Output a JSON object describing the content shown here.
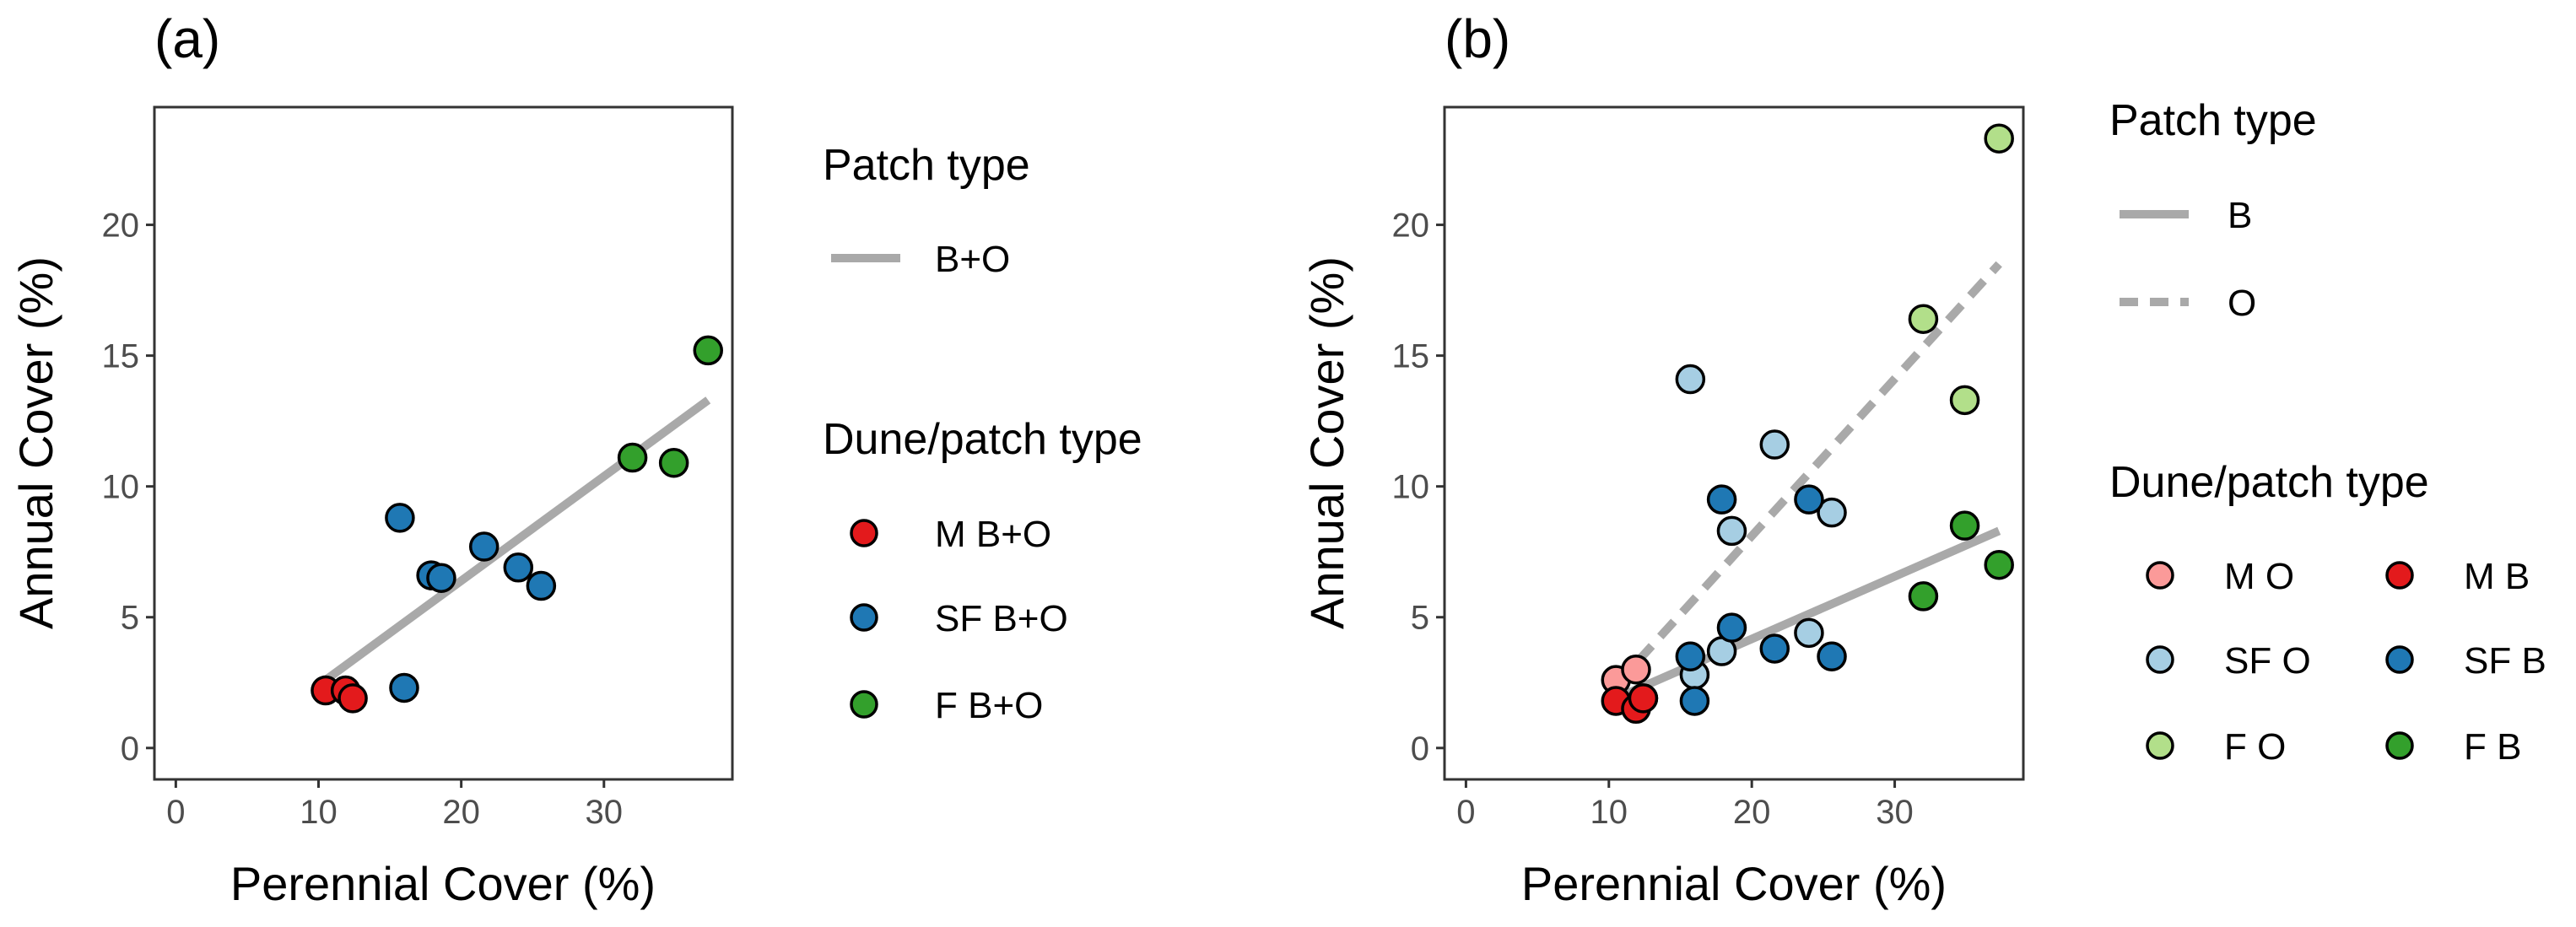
{
  "colors": {
    "M": "#E31A1C",
    "SF": "#1F78B4",
    "F": "#33A02C",
    "M_light": "#FB9A99",
    "SF_light": "#A6CEE3",
    "F_light": "#B2DF8A",
    "trend": "#A9A9A9",
    "point_border": "#000000",
    "panel_border": "#333333",
    "tick_text": "#4D4D4D"
  },
  "chart_data": [
    {
      "panel_label": "(a)",
      "type": "scatter",
      "xlabel": "Perennial Cover (%)",
      "ylabel": "Annual Cover (%)",
      "xlim": [
        -1.5,
        39
      ],
      "ylim": [
        -1.2,
        24.5
      ],
      "xticks": [
        0,
        10,
        20,
        30
      ],
      "yticks": [
        0,
        5,
        10,
        15,
        20
      ],
      "xtick_labels": [
        "0",
        "10",
        "20",
        "30"
      ],
      "ytick_labels": [
        "0",
        "5",
        "10",
        "15",
        "20"
      ],
      "grid": false,
      "series": [
        {
          "name": "M B+O",
          "color_key": "M",
          "points": [
            [
              10.5,
              2.2
            ],
            [
              11.9,
              2.2
            ],
            [
              12.4,
              1.9
            ]
          ]
        },
        {
          "name": "SF B+O",
          "color_key": "SF",
          "points": [
            [
              15.7,
              8.8
            ],
            [
              16.0,
              2.3
            ],
            [
              17.9,
              6.6
            ],
            [
              18.6,
              6.5
            ],
            [
              21.6,
              7.7
            ],
            [
              24.0,
              6.9
            ],
            [
              25.6,
              6.2
            ]
          ]
        },
        {
          "name": "F B+O",
          "color_key": "F",
          "points": [
            [
              32.0,
              11.1
            ],
            [
              34.9,
              10.9
            ],
            [
              37.3,
              15.2
            ]
          ]
        }
      ],
      "trend_lines": [
        {
          "name": "B+O",
          "dash": "solid",
          "x": [
            10.5,
            37.3
          ],
          "y": [
            2.6,
            13.3
          ]
        }
      ],
      "legend": {
        "placement": "right",
        "line_title": "Patch type",
        "line_items": [
          {
            "label": "B+O",
            "dash": "solid"
          }
        ],
        "point_title": "Dune/patch type",
        "point_columns": [
          [
            {
              "label": "M B+O",
              "color_key": "M"
            },
            {
              "label": "SF B+O",
              "color_key": "SF"
            },
            {
              "label": "F B+O",
              "color_key": "F"
            }
          ]
        ]
      }
    },
    {
      "panel_label": "(b)",
      "type": "scatter",
      "xlabel": "Perennial Cover (%)",
      "ylabel": "Annual Cover (%)",
      "xlim": [
        -1.5,
        39
      ],
      "ylim": [
        -1.2,
        24.5
      ],
      "xticks": [
        0,
        10,
        20,
        30
      ],
      "yticks": [
        0,
        5,
        10,
        15,
        20
      ],
      "xtick_labels": [
        "0",
        "10",
        "20",
        "30"
      ],
      "ytick_labels": [
        "0",
        "5",
        "10",
        "15",
        "20"
      ],
      "grid": false,
      "series": [
        {
          "name": "M O",
          "color_key": "M_light",
          "points": [
            [
              10.5,
              2.6
            ],
            [
              11.9,
              3.0
            ],
            [
              12.4,
              1.9
            ]
          ]
        },
        {
          "name": "SF O",
          "color_key": "SF_light",
          "points": [
            [
              15.7,
              14.1
            ],
            [
              16.0,
              2.8
            ],
            [
              17.9,
              3.7
            ],
            [
              18.6,
              8.3
            ],
            [
              21.6,
              11.6
            ],
            [
              24.0,
              4.4
            ],
            [
              25.6,
              9.0
            ]
          ]
        },
        {
          "name": "F O",
          "color_key": "F_light",
          "points": [
            [
              32.0,
              16.4
            ],
            [
              34.9,
              13.3
            ],
            [
              37.3,
              23.3
            ]
          ]
        },
        {
          "name": "M B",
          "color_key": "M",
          "points": [
            [
              10.5,
              1.8
            ],
            [
              11.9,
              1.5
            ],
            [
              12.4,
              1.9
            ]
          ]
        },
        {
          "name": "SF B",
          "color_key": "SF",
          "points": [
            [
              15.7,
              3.5
            ],
            [
              16.0,
              1.8
            ],
            [
              17.9,
              9.5
            ],
            [
              18.6,
              4.6
            ],
            [
              21.6,
              3.8
            ],
            [
              24.0,
              9.5
            ],
            [
              25.6,
              3.5
            ]
          ]
        },
        {
          "name": "F B",
          "color_key": "F",
          "points": [
            [
              32.0,
              5.8
            ],
            [
              34.9,
              8.5
            ],
            [
              37.3,
              7.0
            ]
          ]
        }
      ],
      "trend_lines": [
        {
          "name": "B",
          "dash": "solid",
          "x": [
            10.5,
            37.3
          ],
          "y": [
            1.9,
            8.3
          ]
        },
        {
          "name": "O",
          "dash": "dashed",
          "x": [
            10.5,
            37.3
          ],
          "y": [
            2.4,
            18.5
          ]
        }
      ],
      "legend": {
        "placement": "right",
        "line_title": "Patch type",
        "line_items": [
          {
            "label": "B",
            "dash": "solid"
          },
          {
            "label": "O",
            "dash": "dashed"
          }
        ],
        "point_title": "Dune/patch type",
        "point_columns": [
          [
            {
              "label": "M O",
              "color_key": "M_light"
            },
            {
              "label": "SF O",
              "color_key": "SF_light"
            },
            {
              "label": "F O",
              "color_key": "F_light"
            }
          ],
          [
            {
              "label": "M B",
              "color_key": "M"
            },
            {
              "label": "SF B",
              "color_key": "SF"
            },
            {
              "label": "F B",
              "color_key": "F"
            }
          ]
        ]
      }
    }
  ]
}
